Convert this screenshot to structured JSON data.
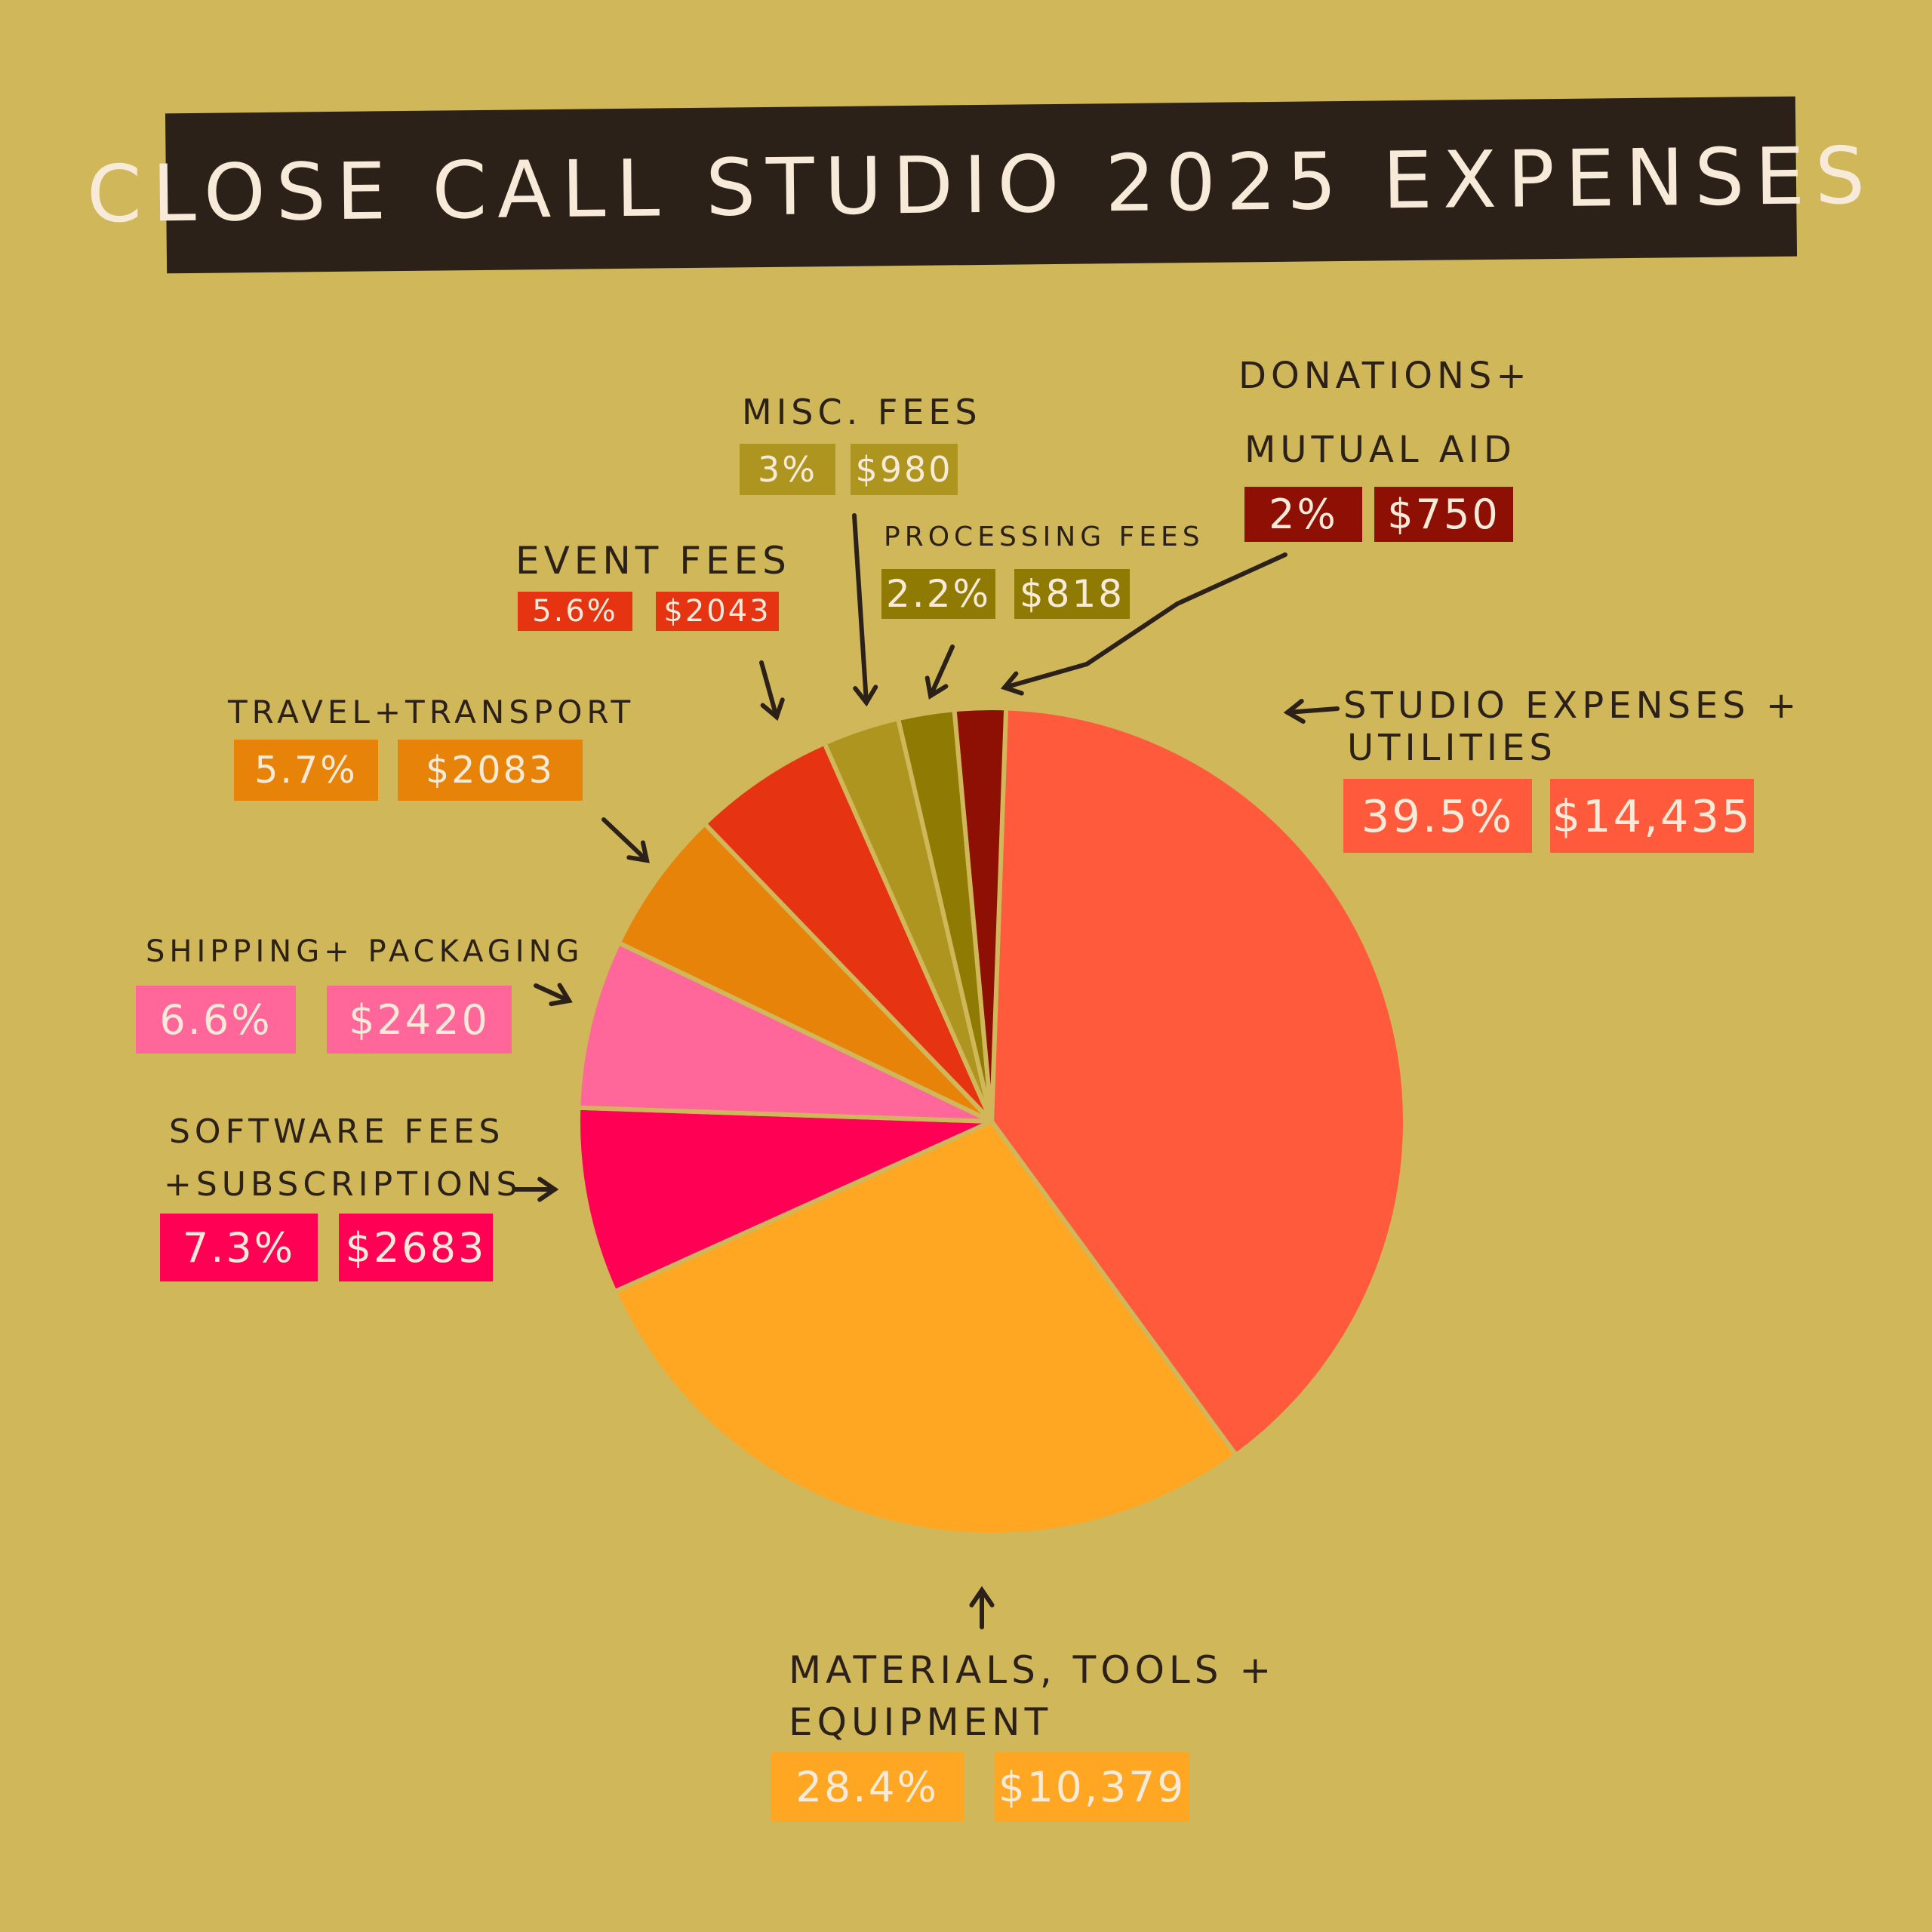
{
  "chart_data": {
    "type": "pie",
    "title": "CLOSE CALL STUDIO 2025 EXPENSES",
    "legend": "none (direct labels with arrows)",
    "slices": [
      {
        "label_lines": [
          "STUDIO EXPENSES +",
          "UTILITIES"
        ],
        "percent_label": "39.5%",
        "amount_label": "$14,435",
        "percent": 39.5,
        "amount": 14435,
        "color": "#ff5a3c"
      },
      {
        "label_lines": [
          "MATERIALS, TOOLS +",
          "EQUIPMENT"
        ],
        "percent_label": "28.4%",
        "amount_label": "$10,379",
        "percent": 28.4,
        "amount": 10379,
        "color": "#ffa622"
      },
      {
        "label_lines": [
          "SOFTWARE FEES",
          "+SUBSCRIPTIONS"
        ],
        "percent_label": "7.3%",
        "amount_label": "$2683",
        "percent": 7.3,
        "amount": 2683,
        "color": "#ff0055"
      },
      {
        "label_lines": [
          "SHIPPING+ PACKAGING"
        ],
        "percent_label": "6.6%",
        "amount_label": "$2420",
        "percent": 6.6,
        "amount": 2420,
        "color": "#ff6699"
      },
      {
        "label_lines": [
          "TRAVEL+TRANSPORT"
        ],
        "percent_label": "5.7%",
        "amount_label": "$2083",
        "percent": 5.7,
        "amount": 2083,
        "color": "#e8830a"
      },
      {
        "label_lines": [
          "EVENT FEES"
        ],
        "percent_label": "5.6%",
        "amount_label": "$2043",
        "percent": 5.6,
        "amount": 2043,
        "color": "#e63312"
      },
      {
        "label_lines": [
          "MISC. FEES"
        ],
        "percent_label": "3%",
        "amount_label": "$980",
        "percent": 3,
        "amount": 980,
        "color": "#ad9520"
      },
      {
        "label_lines": [
          "PROCESSING FEES"
        ],
        "percent_label": "2.2%",
        "amount_label": "$818",
        "percent": 2.2,
        "amount": 818,
        "color": "#8f7a04"
      },
      {
        "label_lines": [
          "DONATIONS+",
          "MUTUAL AID"
        ],
        "percent_label": "2%",
        "amount_label": "$750",
        "percent": 2,
        "amount": 750,
        "color": "#8e0f04"
      }
    ]
  },
  "colors": {
    "background": "#cfb75a",
    "ink": "#2b2119",
    "box_text": "#f7ead8"
  }
}
